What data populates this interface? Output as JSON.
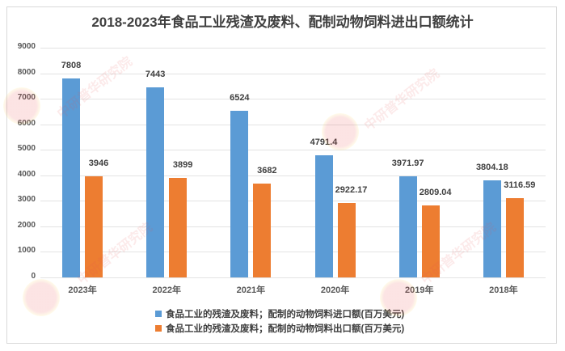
{
  "chart_data": {
    "type": "bar",
    "title": "2018-2023年食品工业残渣及废料、配制动物饲料进出口额统计",
    "categories": [
      "2023年",
      "2022年",
      "2021年",
      "2020年",
      "2019年",
      "2018年"
    ],
    "series": [
      {
        "name": "食品工业的残渣及废料；配制的动物饲料进口额(百万美元)",
        "color": "#5b9bd5",
        "values": [
          7808,
          7443,
          6524,
          4791.4,
          3971.97,
          3804.18
        ],
        "labels": [
          "7808",
          "7443",
          "6524",
          "4791.4",
          "3971.97",
          "3804.18"
        ]
      },
      {
        "name": "食品工业的残渣及废料；配制的动物饲料出口额(百万美元)",
        "color": "#ed7d31",
        "values": [
          3946,
          3899,
          3682,
          2922.17,
          2809.04,
          3116.59
        ],
        "labels": [
          "3946",
          "3899",
          "3682",
          "2922.17",
          "2809.04",
          "3116.59"
        ]
      }
    ],
    "xlabel": "",
    "ylabel": "",
    "ylim": [
      0,
      9000
    ],
    "yticks": [
      "0",
      "1000",
      "2000",
      "3000",
      "4000",
      "5000",
      "6000",
      "7000",
      "8000",
      "9000"
    ],
    "grid": true,
    "legend_position": "bottom"
  },
  "watermark": {
    "url_text": "www.ChinaIRN.com",
    "org_text": "中研普华研究院",
    "logo_text": "CIRN"
  }
}
